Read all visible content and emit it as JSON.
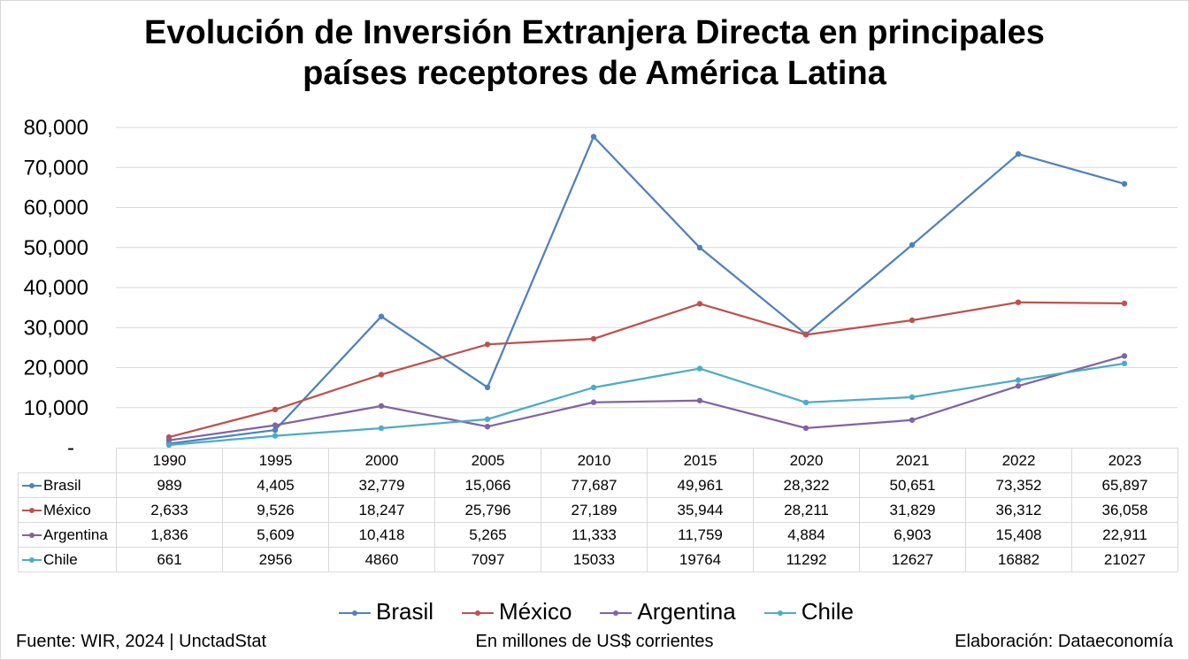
{
  "title_line1": "Evolución de Inversión Extranjera Directa en principales",
  "title_line2": "países receptores de América Latina",
  "source": "Fuente: WIR, 2024 | UnctadStat",
  "units": "En millones de US$ corrientes",
  "credit": "Elaboración: Dataeconomía",
  "chart_data": {
    "type": "line",
    "title": "Evolución de Inversión Extranjera Directa en principales países receptores de América Latina",
    "ylim": [
      0,
      80000
    ],
    "yticks": [
      "-",
      "10,000",
      "20,000",
      "30,000",
      "40,000",
      "50,000",
      "60,000",
      "70,000",
      "80,000"
    ],
    "grid": true,
    "legend": "bottom",
    "categories": [
      "1990",
      "1995",
      "2000",
      "2005",
      "2010",
      "2015",
      "2020",
      "2021",
      "2022",
      "2023"
    ],
    "series": [
      {
        "name": "Brasil",
        "color": "#4f81bd",
        "values": [
          989,
          4405,
          32779,
          15066,
          77687,
          49961,
          28322,
          50651,
          73352,
          65897
        ],
        "labels": [
          "989",
          "4,405",
          "32,779",
          "15,066",
          "77,687",
          "49,961",
          "28,322",
          "50,651",
          "73,352",
          "65,897"
        ]
      },
      {
        "name": "México",
        "color": "#c0504d",
        "values": [
          2633,
          9526,
          18247,
          25796,
          27189,
          35944,
          28211,
          31829,
          36312,
          36058
        ],
        "labels": [
          "2,633",
          "9,526",
          "18,247",
          "25,796",
          "27,189",
          "35,944",
          "28,211",
          "31,829",
          "36,312",
          "36,058"
        ]
      },
      {
        "name": "Argentina",
        "color": "#8064a2",
        "values": [
          1836,
          5609,
          10418,
          5265,
          11333,
          11759,
          4884,
          6903,
          15408,
          22911
        ],
        "labels": [
          "1,836",
          "5,609",
          "10,418",
          "5,265",
          "11,333",
          "11,759",
          "4,884",
          "6,903",
          "15,408",
          "22,911"
        ]
      },
      {
        "name": "Chile",
        "color": "#4bacc6",
        "values": [
          661,
          2956,
          4860,
          7097,
          15033,
          19764,
          11292,
          12627,
          16882,
          21027
        ],
        "labels": [
          "661",
          "2956",
          "4860",
          "7097",
          "15033",
          "19764",
          "11292",
          "12627",
          "16882",
          "21027"
        ]
      }
    ]
  }
}
